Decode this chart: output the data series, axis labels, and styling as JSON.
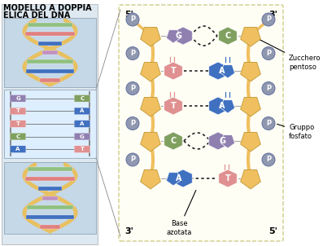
{
  "title_line1": "MODELLO A DOPPIA",
  "title_line2": "ELICA DEL DNA",
  "title_fontsize": 7.0,
  "bg_color": "#ffffff",
  "pentagon_color": "#f0c060",
  "pentagon_edge": "#c8a040",
  "phosphate_color": "#9098b0",
  "phosphate_edge": "#6070a0",
  "base_pairs": [
    {
      "left": "G",
      "right": "C",
      "left_color": "#9080b0",
      "right_color": "#80a060",
      "type": "GC"
    },
    {
      "left": "T",
      "right": "A",
      "left_color": "#e09090",
      "right_color": "#4070c0",
      "type": "TA"
    },
    {
      "left": "T",
      "right": "A",
      "left_color": "#e09090",
      "right_color": "#4070c0",
      "type": "TA"
    },
    {
      "left": "C",
      "right": "G",
      "left_color": "#80a060",
      "right_color": "#9080b0",
      "type": "CG"
    },
    {
      "left": "A",
      "right": "T",
      "left_color": "#4070c0",
      "right_color": "#e09090",
      "type": "AT"
    }
  ],
  "dot_color": "#222222",
  "label_zucchero": "Zucchero\npentoso",
  "label_gruppo": "Gruppo\nfosfato",
  "label_base": "Base\nazotata",
  "label_5_top_left": "5'",
  "label_3_top_right": "3'",
  "label_3_bottom_left": "3'",
  "label_5_bottom_right": "5'",
  "helix_gold": "#e8c060",
  "helix_gold_edge": "#c09030",
  "mid_box_bg": "#ddeeff",
  "left_panel_bg": "#dde8f0",
  "bot_box_bg": "#c5d8e8",
  "top_box_bg": "#c5d8e8",
  "pairs_mid": [
    [
      "G",
      "C",
      "#9080b0",
      "#80a060"
    ],
    [
      "T",
      "A",
      "#e09090",
      "#4070c0"
    ],
    [
      "T",
      "A",
      "#e09090",
      "#4070c0"
    ],
    [
      "C",
      "G",
      "#80a060",
      "#9080b0"
    ],
    [
      "A",
      "T",
      "#4070c0",
      "#e09090"
    ]
  ]
}
